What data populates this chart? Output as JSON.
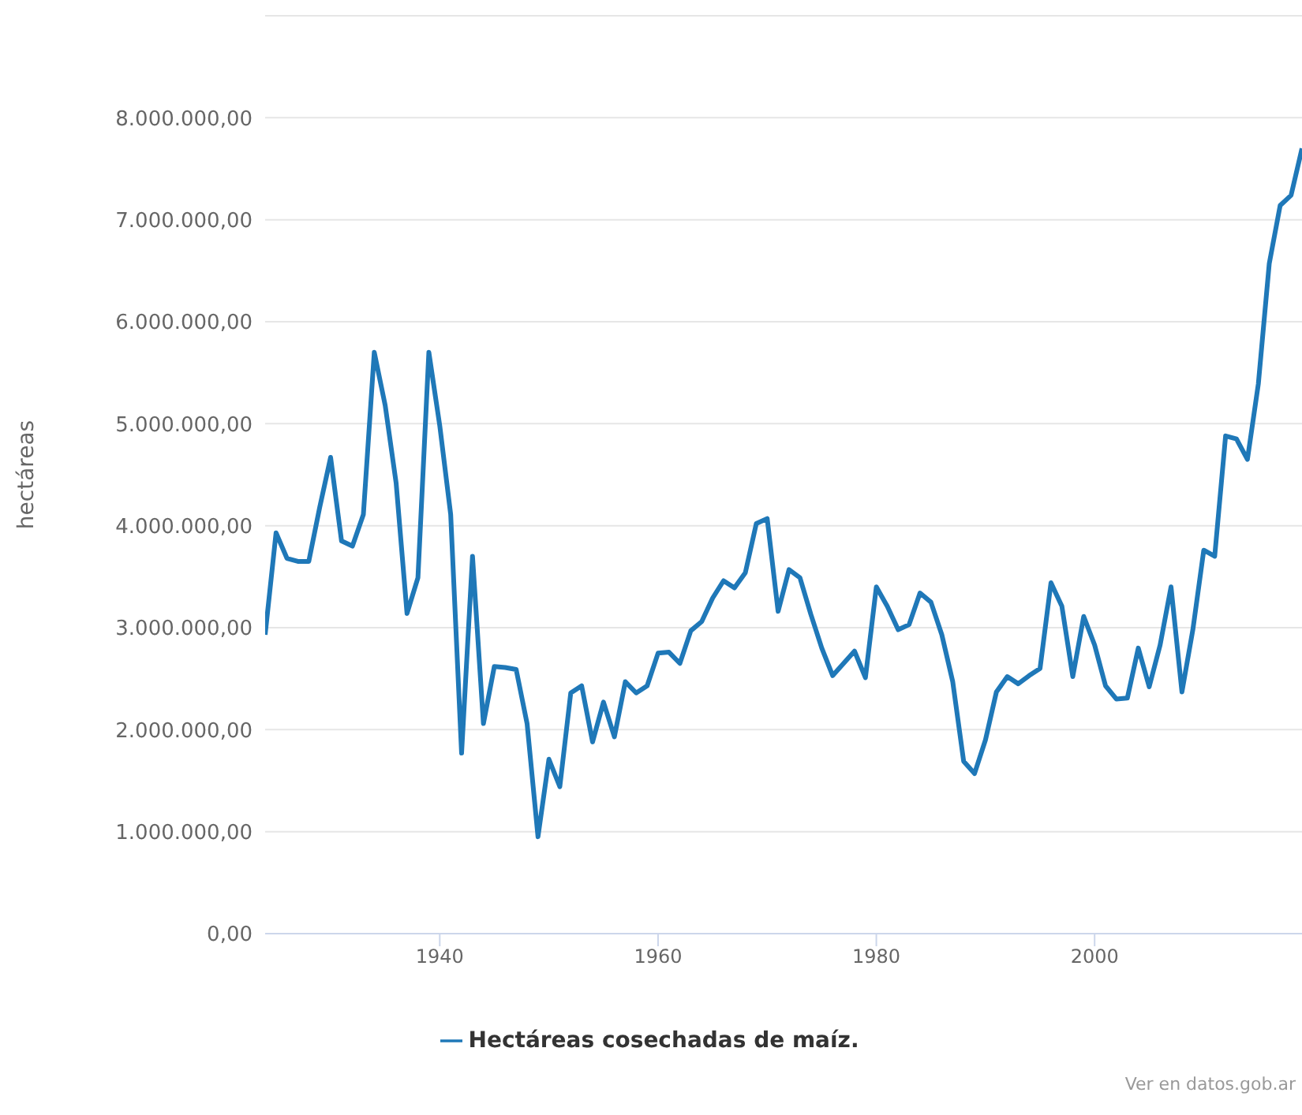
{
  "chart_data": {
    "type": "line",
    "ylabel": "hectáreas",
    "x": [
      1924,
      1925,
      1926,
      1927,
      1928,
      1929,
      1930,
      1931,
      1932,
      1933,
      1934,
      1935,
      1936,
      1937,
      1938,
      1939,
      1940,
      1941,
      1942,
      1943,
      1944,
      1945,
      1946,
      1947,
      1948,
      1949,
      1950,
      1951,
      1952,
      1953,
      1954,
      1955,
      1956,
      1957,
      1958,
      1959,
      1960,
      1961,
      1962,
      1963,
      1964,
      1965,
      1966,
      1967,
      1968,
      1969,
      1970,
      1971,
      1972,
      1973,
      1974,
      1975,
      1976,
      1977,
      1978,
      1979,
      1980,
      1981,
      1982,
      1983,
      1984,
      1985,
      1986,
      1987,
      1988,
      1989,
      1990,
      1991,
      1992,
      1993,
      1994,
      1995,
      1996,
      1997,
      1998,
      1999,
      2000,
      2001,
      2002,
      2003,
      2004,
      2005,
      2006,
      2007,
      2008,
      2009,
      2010,
      2011,
      2012,
      2013,
      2014,
      2015,
      2016,
      2017,
      2018,
      2019
    ],
    "series": [
      {
        "name": "Hectáreas cosechadas de maíz.",
        "color": "#1f78b8",
        "values": [
          2930000,
          3930000,
          3680000,
          3650000,
          3650000,
          4180000,
          4670000,
          3850000,
          3800000,
          4110000,
          5700000,
          5180000,
          4420000,
          3140000,
          3490000,
          5700000,
          4980000,
          4110000,
          1770000,
          3700000,
          2060000,
          2620000,
          2610000,
          2590000,
          2060000,
          950000,
          1710000,
          1440000,
          2360000,
          2430000,
          1880000,
          2270000,
          1930000,
          2470000,
          2360000,
          2430000,
          2750000,
          2760000,
          2650000,
          2970000,
          3060000,
          3290000,
          3460000,
          3390000,
          3540000,
          4020000,
          4070000,
          3160000,
          3570000,
          3490000,
          3130000,
          2800000,
          2530000,
          2650000,
          2770000,
          2510000,
          3400000,
          3210000,
          2980000,
          3030000,
          3340000,
          3250000,
          2930000,
          2470000,
          1690000,
          1570000,
          1900000,
          2370000,
          2520000,
          2450000,
          2530000,
          2600000,
          3440000,
          3210000,
          2520000,
          3110000,
          2830000,
          2430000,
          2300000,
          2310000,
          2800000,
          2420000,
          2830000,
          3400000,
          2370000,
          2980000,
          3760000,
          3700000,
          4880000,
          4850000,
          4650000,
          5390000,
          6570000,
          7140000,
          7240000,
          7700000
        ]
      }
    ],
    "xlim": [
      1924,
      2019
    ],
    "xticks": [
      1940,
      1960,
      1980,
      2000
    ],
    "ylim": [
      0,
      9000000
    ],
    "yticks": [
      {
        "value": 0,
        "label": "0,00"
      },
      {
        "value": 1000000,
        "label": "1.000.000,00"
      },
      {
        "value": 2000000,
        "label": "2.000.000,00"
      },
      {
        "value": 3000000,
        "label": "3.000.000,00"
      },
      {
        "value": 4000000,
        "label": "4.000.000,00"
      },
      {
        "value": 5000000,
        "label": "5.000.000,00"
      },
      {
        "value": 6000000,
        "label": "6.000.000,00"
      },
      {
        "value": 7000000,
        "label": "7.000.000,00"
      },
      {
        "value": 8000000,
        "label": "8.000.000,00"
      },
      {
        "value": 9000000,
        "label": null
      }
    ],
    "grid": "y",
    "legend": "bottom",
    "marker": "none",
    "line_style": "solid",
    "annotations": [
      "Ver en datos.gob.ar"
    ]
  }
}
